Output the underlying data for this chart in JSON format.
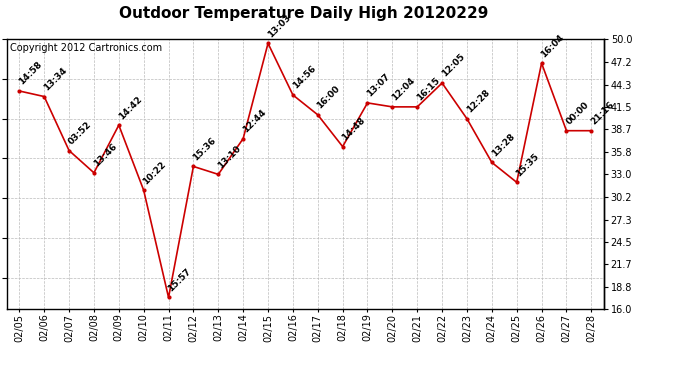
{
  "title": "Outdoor Temperature Daily High 20120229",
  "copyright": "Copyright 2012 Cartronics.com",
  "dates": [
    "02/05",
    "02/06",
    "02/07",
    "02/08",
    "02/09",
    "02/10",
    "02/11",
    "02/12",
    "02/13",
    "02/14",
    "02/15",
    "02/16",
    "02/17",
    "02/18",
    "02/19",
    "02/20",
    "02/21",
    "02/22",
    "02/23",
    "02/24",
    "02/25",
    "02/26",
    "02/27",
    "02/28"
  ],
  "values": [
    43.5,
    42.8,
    36.0,
    33.2,
    39.2,
    31.0,
    17.5,
    34.0,
    33.0,
    37.5,
    49.5,
    43.0,
    40.5,
    36.5,
    42.0,
    41.5,
    41.5,
    44.5,
    40.0,
    34.5,
    32.0,
    47.0,
    38.5,
    38.5
  ],
  "time_labels": [
    "14:58",
    "13:34",
    "03:52",
    "13:46",
    "14:42",
    "10:22",
    "15:57",
    "15:36",
    "13:10",
    "12:44",
    "13:03",
    "14:56",
    "16:00",
    "14:48",
    "13:07",
    "12:04",
    "16:15",
    "12:05",
    "12:28",
    "13:28",
    "15:35",
    "16:04",
    "00:00",
    "21:16"
  ],
  "line_color": "#cc0000",
  "marker_color": "#cc0000",
  "bg_color": "#ffffff",
  "grid_color": "#bbbbbb",
  "ylim": [
    16.0,
    50.0
  ],
  "yticks": [
    16.0,
    18.8,
    21.7,
    24.5,
    27.3,
    30.2,
    33.0,
    35.8,
    38.7,
    41.5,
    44.3,
    47.2,
    50.0
  ],
  "title_fontsize": 11,
  "label_fontsize": 6.5,
  "copyright_fontsize": 7,
  "tick_fontsize": 7
}
